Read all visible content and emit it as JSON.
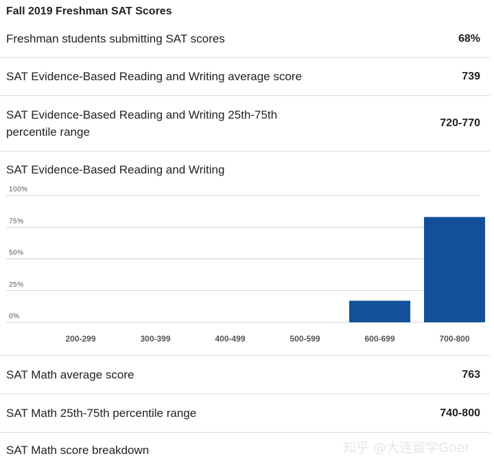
{
  "title": "Fall 2019 Freshman SAT Scores",
  "rows": [
    {
      "label": "Freshman students submitting SAT scores",
      "value": "68%"
    },
    {
      "label": "SAT Evidence-Based Reading and Writing average score",
      "value": "739"
    },
    {
      "label": "SAT Evidence-Based Reading and Writing 25th-75th percentile range",
      "value": "720-770"
    },
    {
      "label": "SAT Math average score",
      "value": "763"
    },
    {
      "label": "SAT Math 25th-75th percentile range",
      "value": "740-800"
    },
    {
      "label": "SAT Math score breakdown",
      "value": ""
    }
  ],
  "chart_data": {
    "type": "bar",
    "title": "SAT Evidence-Based Reading and Writing",
    "categories": [
      "200-299",
      "300-399",
      "400-499",
      "500-599",
      "600-699",
      "700-800"
    ],
    "values": [
      0,
      0,
      0,
      0,
      17,
      83
    ],
    "ylim": [
      0,
      100
    ],
    "yticks": [
      "0%",
      "25%",
      "50%",
      "75%",
      "100%"
    ],
    "grid": true,
    "bar_color": "#134f9b"
  },
  "watermark": "知乎 @大连留学Goer"
}
